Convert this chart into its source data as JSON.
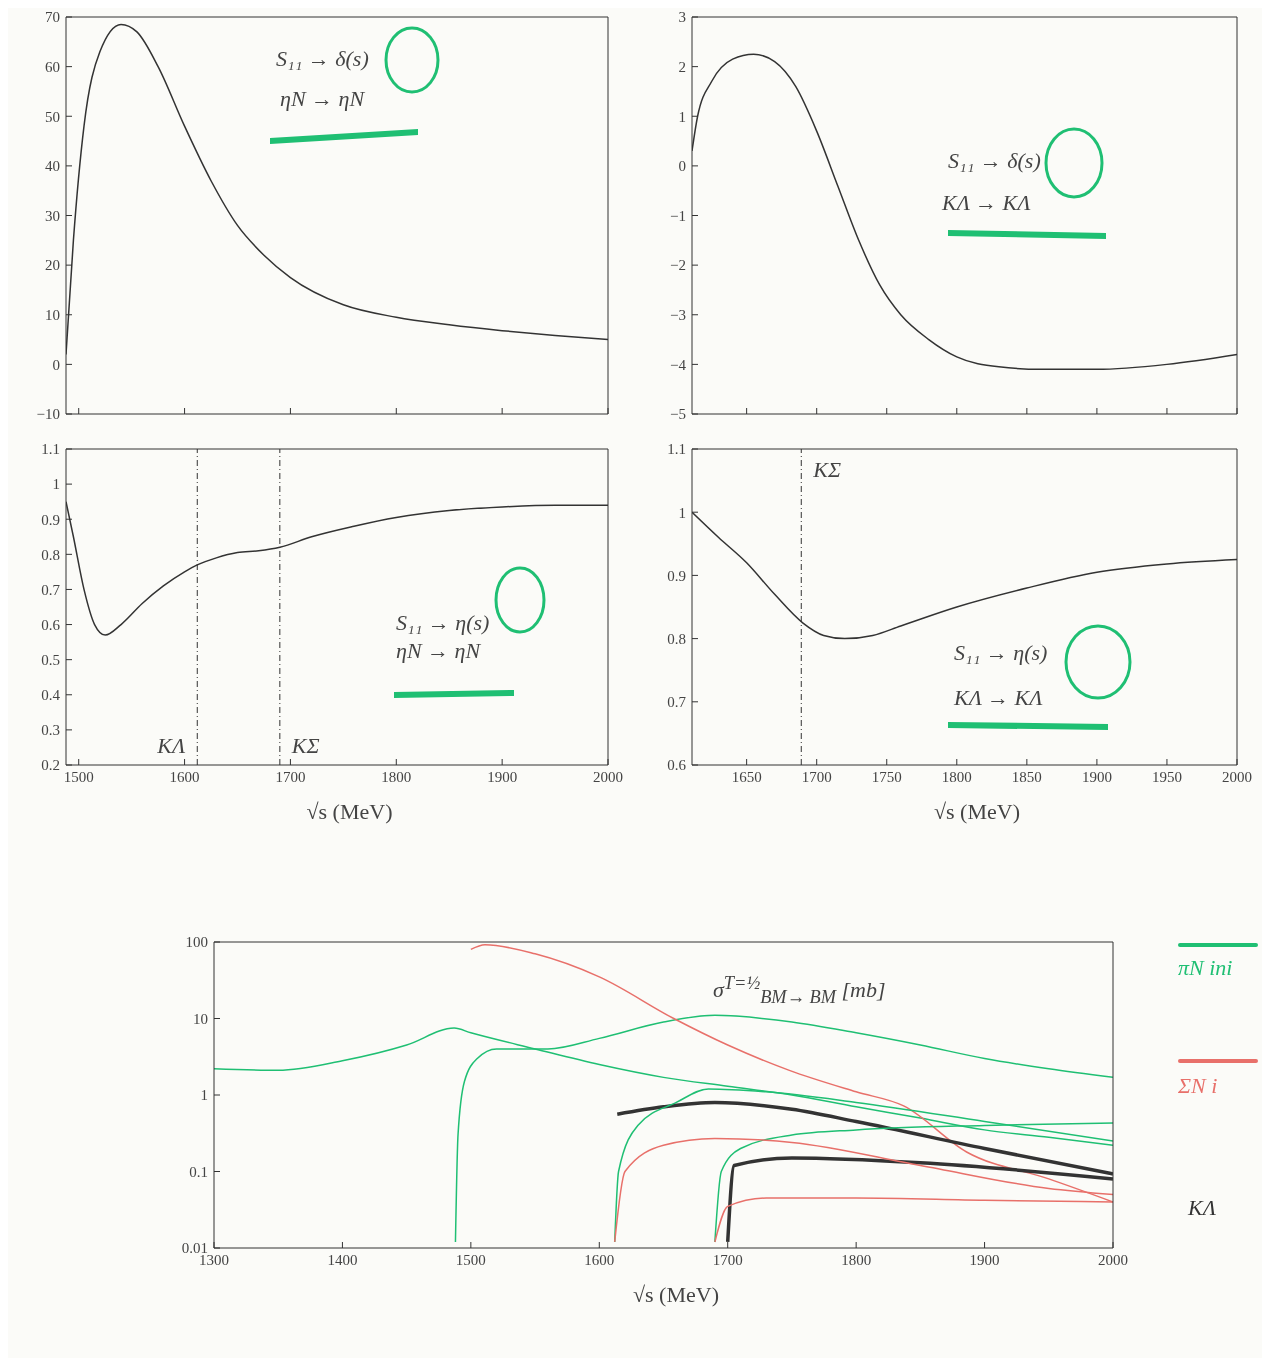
{
  "chart_data": [
    {
      "type": "line",
      "xlim": [
        1488,
        2000
      ],
      "xticks": [
        {
          "value": 1500,
          "label": null
        },
        {
          "value": 1600,
          "label": null
        },
        {
          "value": 1700,
          "label": null
        },
        {
          "value": 1800,
          "label": null
        },
        {
          "value": 1900,
          "label": null
        },
        {
          "value": 2000,
          "label": null
        }
      ],
      "ylim": [
        -10,
        70
      ],
      "yticks": [
        -10,
        0,
        10,
        20,
        30,
        40,
        50,
        60,
        70
      ],
      "tick_labels": "y",
      "annotations": [
        "S₁₁ → δ(s)",
        "ηN → ηN"
      ],
      "series": [
        {
          "color": "#333333",
          "x": [
            1488,
            1495,
            1505,
            1520,
            1540,
            1555,
            1575,
            1600,
            1625,
            1650,
            1675,
            1700,
            1750,
            1800,
            1850,
            1900,
            1950,
            2000
          ],
          "values": [
            2,
            25,
            48,
            63,
            68.5,
            67,
            60,
            48,
            37,
            28,
            22,
            17.5,
            12,
            9.5,
            8,
            6.8,
            5.8,
            5
          ]
        }
      ]
    },
    {
      "type": "line",
      "xlim": [
        1611,
        2000
      ],
      "xticks": [
        {
          "value": 1650,
          "label": null
        },
        {
          "value": 1700,
          "label": null
        },
        {
          "value": 1750,
          "label": null
        },
        {
          "value": 1800,
          "label": null
        },
        {
          "value": 1850,
          "label": null
        },
        {
          "value": 1900,
          "label": null
        },
        {
          "value": 1950,
          "label": null
        },
        {
          "value": 2000,
          "label": null
        }
      ],
      "ylim": [
        -5,
        3
      ],
      "yticks": [
        -5,
        -4,
        -3,
        -2,
        -1,
        0,
        1,
        2,
        3
      ],
      "tick_labels": "y",
      "annotations": [
        "S₁₁ → δ(s)",
        "KΛ → KΛ"
      ],
      "series": [
        {
          "color": "#333333",
          "x": [
            1611,
            1615,
            1625,
            1640,
            1655,
            1670,
            1685,
            1700,
            1715,
            1730,
            1745,
            1760,
            1780,
            1800,
            1830,
            1860,
            1900,
            1950,
            2000
          ],
          "values": [
            0.3,
            1.0,
            1.7,
            2.15,
            2.25,
            2.1,
            1.6,
            0.7,
            -0.4,
            -1.5,
            -2.4,
            -3.0,
            -3.5,
            -3.85,
            -4.05,
            -4.1,
            -4.1,
            -4.0,
            -3.8
          ]
        }
      ]
    },
    {
      "type": "line",
      "xlim": [
        1488,
        2000
      ],
      "xticks": [
        1500,
        1600,
        1700,
        1800,
        1900,
        2000
      ],
      "ylim": [
        0.2,
        1.1
      ],
      "yticks": [
        0.2,
        0.3,
        0.4,
        0.5,
        0.6,
        0.7,
        0.8,
        0.9,
        1,
        1.1
      ],
      "xlabel": "√s (MeV)",
      "annotations": [
        "S₁₁ → η(s)",
        "ηN → ηN"
      ],
      "ref_lines": [
        {
          "axis": "x",
          "value": 1612,
          "label": "KΛ",
          "line_style": "dashed"
        },
        {
          "axis": "x",
          "value": 1690,
          "label": "KΣ",
          "line_style": "dashed"
        }
      ],
      "series": [
        {
          "color": "#333333",
          "x": [
            1488,
            1495,
            1505,
            1515,
            1525,
            1540,
            1560,
            1580,
            1600,
            1612,
            1630,
            1650,
            1670,
            1690,
            1720,
            1760,
            1800,
            1850,
            1900,
            1950,
            2000
          ],
          "values": [
            0.95,
            0.85,
            0.7,
            0.6,
            0.57,
            0.6,
            0.66,
            0.71,
            0.75,
            0.77,
            0.79,
            0.805,
            0.81,
            0.82,
            0.85,
            0.88,
            0.905,
            0.925,
            0.935,
            0.94,
            0.94
          ]
        }
      ]
    },
    {
      "type": "line",
      "xlim": [
        1611,
        2000
      ],
      "xticks": [
        1650,
        1700,
        1750,
        1800,
        1850,
        1900,
        1950,
        2000
      ],
      "ylim": [
        0.6,
        1.1
      ],
      "yticks": [
        0.6,
        0.7,
        0.8,
        0.9,
        1,
        1.1
      ],
      "xlabel": "√s (MeV)",
      "annotations": [
        "S₁₁ → η(s)",
        "KΛ → KΛ"
      ],
      "ref_lines": [
        {
          "axis": "x",
          "value": 1689,
          "label": "KΣ",
          "line_style": "dashed"
        }
      ],
      "series": [
        {
          "color": "#333333",
          "x": [
            1611,
            1630,
            1650,
            1670,
            1690,
            1705,
            1720,
            1740,
            1760,
            1800,
            1850,
            1900,
            1950,
            2000
          ],
          "values": [
            1.0,
            0.96,
            0.92,
            0.87,
            0.825,
            0.805,
            0.8,
            0.805,
            0.82,
            0.85,
            0.88,
            0.905,
            0.918,
            0.925
          ]
        }
      ]
    },
    {
      "type": "line",
      "log": "y",
      "xlim": [
        1300,
        2000
      ],
      "xticks": [
        1300,
        1400,
        1500,
        1600,
        1700,
        1800,
        1900,
        2000
      ],
      "ylim": [
        0.01,
        100
      ],
      "yticks": [
        0.01,
        0.1,
        1,
        10,
        100
      ],
      "xlabel": "√s (MeV)",
      "annotations": [
        "σ$^{T=½}$$_{BM→ BM}$ [mb]",
        "πN ini",
        "ΣN i",
        "KΛ"
      ],
      "series": [
        {
          "color": "#1fbf73",
          "x": [
            1300,
            1350,
            1400,
            1450,
            1487,
            1500,
            1550,
            1600,
            1650,
            1700,
            1750,
            1800,
            1850,
            1900,
            1950,
            2000
          ],
          "values": [
            2.2,
            2.1,
            2.8,
            4.5,
            7.5,
            6.5,
            4.0,
            2.5,
            1.7,
            1.3,
            1.0,
            0.7,
            0.5,
            0.35,
            0.28,
            0.22
          ]
        },
        {
          "color": "#1fbf73",
          "x": [
            1488,
            1490,
            1495,
            1505,
            1520,
            1560,
            1600,
            1650,
            1690,
            1750,
            1800,
            1850,
            1900,
            1950,
            2000
          ],
          "values": [
            0.012,
            0.3,
            1.5,
            3,
            4,
            4,
            5.5,
            9,
            11,
            9,
            6.5,
            4.5,
            3,
            2.2,
            1.7
          ]
        },
        {
          "color": "#e8706a",
          "x": [
            1500,
            1511,
            1550,
            1600,
            1658,
            1700,
            1748,
            1800,
            1837,
            1886,
            1950,
            2000
          ],
          "values": [
            80,
            92,
            70,
            35,
            10,
            4.5,
            2.1,
            1.1,
            0.72,
            0.18,
            0.08,
            0.04
          ]
        },
        {
          "color": "#333333",
          "x": [
            1614,
            1650,
            1690,
            1750,
            1800,
            1900,
            2000
          ],
          "values": [
            0.56,
            0.7,
            0.8,
            0.65,
            0.45,
            0.2,
            0.093
          ]
        },
        {
          "color": "#333333",
          "x": [
            1700,
            1705,
            1750,
            1850,
            2000
          ],
          "values": [
            0.012,
            0.12,
            0.15,
            0.13,
            0.08
          ]
        },
        {
          "color": "#1fbf73",
          "x": [
            1612,
            1615,
            1630,
            1660,
            1685,
            1730,
            1800,
            1900,
            2000
          ],
          "values": [
            0.012,
            0.1,
            0.4,
            0.8,
            1.2,
            1.1,
            0.8,
            0.45,
            0.25
          ]
        },
        {
          "color": "#1fbf73",
          "x": [
            1690,
            1695,
            1710,
            1750,
            1800,
            1900,
            2000
          ],
          "values": [
            0.012,
            0.1,
            0.2,
            0.3,
            0.35,
            0.4,
            0.43
          ]
        },
        {
          "color": "#e8706a",
          "x": [
            1612,
            1620,
            1650,
            1690,
            1750,
            1850,
            1950,
            2000
          ],
          "values": [
            0.012,
            0.1,
            0.22,
            0.27,
            0.24,
            0.12,
            0.06,
            0.05
          ]
        },
        {
          "color": "#e8706a",
          "x": [
            1690,
            1700,
            1730,
            1800,
            1900,
            2000
          ],
          "values": [
            0.012,
            0.035,
            0.045,
            0.045,
            0.042,
            0.04
          ]
        }
      ]
    }
  ]
}
